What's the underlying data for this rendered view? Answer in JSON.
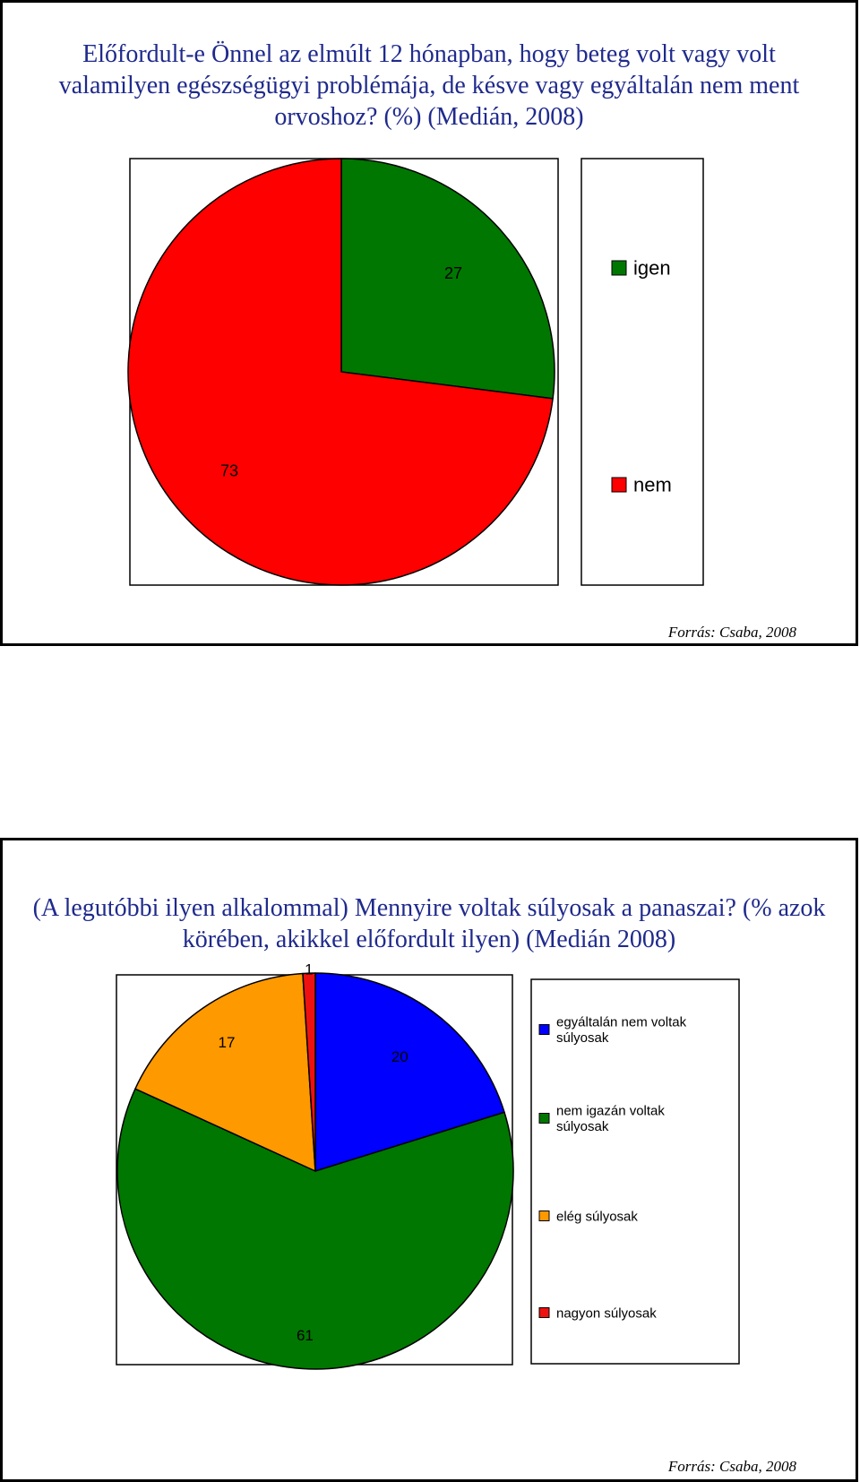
{
  "slides": [
    {
      "title": "Előfordult-e Önnel az elmúlt 12 hónapban, hogy beteg volt vagy volt valamilyen egészségügyi problémája, de késve vagy egyáltalán nem ment orvoshoz? (%) (Medián, 2008)",
      "source": "Forrás: Csaba, 2008"
    },
    {
      "title": "(A legutóbbi ilyen alkalommal) Mennyire voltak súlyosak a panaszai? (% azok körében, akikkel előfordult ilyen) (Medián 2008)",
      "source": "Forrás: Csaba, 2008"
    }
  ],
  "chart_data": [
    {
      "type": "pie",
      "categories": [
        "igen",
        "nem"
      ],
      "values": [
        27,
        73
      ],
      "data_labels": [
        "27",
        "73"
      ],
      "colors": [
        "#007700",
        "#ff0000"
      ],
      "start_angle": "12 o'clock",
      "direction": "clockwise",
      "legend_position": "right"
    },
    {
      "type": "pie",
      "categories": [
        "egyáltalán nem voltak súlyosak",
        "nem igazán voltak súlyosak",
        "elég súlyosak",
        "nagyon súlyosak"
      ],
      "values": [
        20,
        61,
        17,
        1
      ],
      "data_labels": [
        "20",
        "61",
        "17",
        "1"
      ],
      "colors": [
        "#0000ff",
        "#007700",
        "#ff9900",
        "#ee1111"
      ],
      "start_angle": "12 o'clock",
      "direction": "clockwise",
      "legend_position": "right"
    }
  ]
}
